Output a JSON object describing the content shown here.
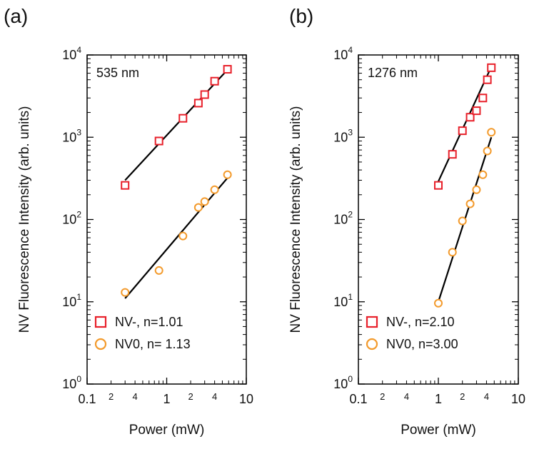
{
  "chart_data": [
    {
      "type": "scatter",
      "panel_label": "(a)",
      "annotation": "535 nm",
      "xlabel": "Power (mW)",
      "ylabel": "NV Fluorescence Intensity (arb. units)",
      "xscale": "log",
      "yscale": "log",
      "xlim": [
        0.1,
        10
      ],
      "ylim": [
        1,
        10000
      ],
      "x_tick_labels": [
        "0.1",
        "1",
        "10"
      ],
      "x_minor_labels": [
        "2",
        "4",
        "2",
        "4"
      ],
      "y_tick_labels": [
        {
          "base": "10",
          "exp": "0"
        },
        {
          "base": "10",
          "exp": "1"
        },
        {
          "base": "10",
          "exp": "2"
        },
        {
          "base": "10",
          "exp": "3"
        },
        {
          "base": "10",
          "exp": "4"
        }
      ],
      "legend_position": "bottom-right",
      "series": [
        {
          "name": "NV-, n=1.01",
          "marker": "square",
          "color": "#e8202a",
          "x": [
            0.3,
            0.8,
            1.6,
            2.5,
            3.0,
            4.0,
            5.8
          ],
          "y": [
            260,
            900,
            1700,
            2600,
            3300,
            4800,
            6700
          ],
          "fit": {
            "x": [
              0.3,
              5.8
            ],
            "y": [
              300,
              6600
            ]
          }
        },
        {
          "name": "NV0, n= 1.13",
          "marker": "circle",
          "color": "#f39a2b",
          "x": [
            0.3,
            0.8,
            1.6,
            2.5,
            3.0,
            4.0,
            5.8
          ],
          "y": [
            13,
            24,
            63,
            140,
            165,
            230,
            350
          ],
          "fit": {
            "x": [
              0.3,
              5.8
            ],
            "y": [
              11,
              320
            ]
          }
        }
      ]
    },
    {
      "type": "scatter",
      "panel_label": "(b)",
      "annotation": "1276 nm",
      "xlabel": "Power (mW)",
      "ylabel": "NV Fluorescence Intensity (arb. units)",
      "xscale": "log",
      "yscale": "log",
      "xlim": [
        0.1,
        10
      ],
      "ylim": [
        1,
        10000
      ],
      "x_tick_labels": [
        "0.1",
        "1",
        "10"
      ],
      "x_minor_labels": [
        "2",
        "4",
        "2",
        "4"
      ],
      "y_tick_labels": [
        {
          "base": "10",
          "exp": "0"
        },
        {
          "base": "10",
          "exp": "1"
        },
        {
          "base": "10",
          "exp": "2"
        },
        {
          "base": "10",
          "exp": "3"
        },
        {
          "base": "10",
          "exp": "4"
        }
      ],
      "legend_position": "bottom-right",
      "series": [
        {
          "name": "NV-, n=2.10",
          "marker": "square",
          "color": "#e8202a",
          "x": [
            1.0,
            1.5,
            2.0,
            2.5,
            3.0,
            3.6,
            4.1,
            4.6
          ],
          "y": [
            260,
            620,
            1200,
            1750,
            2100,
            3000,
            5000,
            7000
          ],
          "fit": {
            "x": [
              1.0,
              4.6
            ],
            "y": [
              290,
              7200
            ]
          }
        },
        {
          "name": "NV0, n=3.00",
          "marker": "circle",
          "color": "#f39a2b",
          "x": [
            1.0,
            1.5,
            2.0,
            2.5,
            3.0,
            3.6,
            4.1,
            4.6
          ],
          "y": [
            9.6,
            40,
            96,
            155,
            230,
            350,
            680,
            1150
          ],
          "fit": {
            "x": [
              1.0,
              4.6
            ],
            "y": [
              10,
              1000
            ]
          }
        }
      ]
    }
  ]
}
